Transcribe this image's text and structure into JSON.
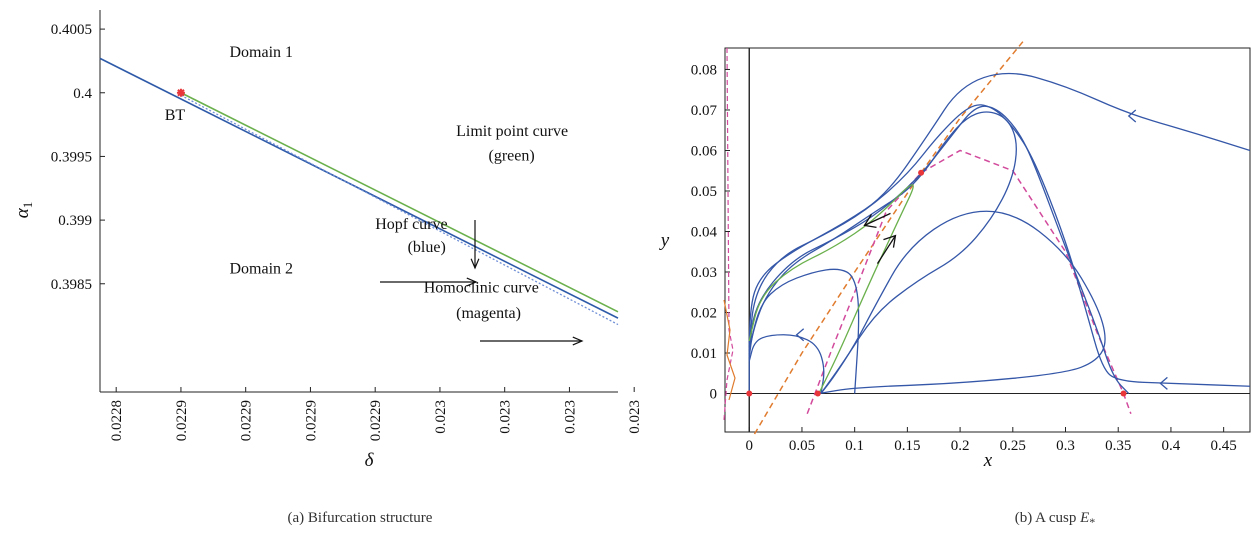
{
  "chart_data": [
    {
      "type": "line",
      "caption": "(a)  Bifurcation structure",
      "xlabel": "δ",
      "ylabel_main": "α",
      "ylabel_sub": "1",
      "xlim": [
        0.022875,
        0.023035
      ],
      "ylim": [
        0.39765,
        0.40065
      ],
      "xticks": [
        {
          "value": 0.02288,
          "label": "0.0228"
        },
        {
          "value": 0.0229,
          "label": "0.0229"
        },
        {
          "value": 0.02292,
          "label": "0.0229"
        },
        {
          "value": 0.02294,
          "label": "0.0229"
        },
        {
          "value": 0.02296,
          "label": "0.0229"
        },
        {
          "value": 0.02298,
          "label": "0.023"
        },
        {
          "value": 0.023,
          "label": "0.023"
        },
        {
          "value": 0.02302,
          "label": "0.023"
        },
        {
          "value": 0.02304,
          "label": "0.023"
        }
      ],
      "yticks": [
        {
          "value": 0.3985,
          "label": "0.3985"
        },
        {
          "value": 0.399,
          "label": "0.399"
        },
        {
          "value": 0.3995,
          "label": "0.3995"
        },
        {
          "value": 0.4,
          "label": "0.4"
        },
        {
          "value": 0.4005,
          "label": "0.4005"
        }
      ],
      "series": [
        {
          "key": "limit_point",
          "color": "#6ab04c",
          "x": [
            0.0229,
            0.023035
          ],
          "y": [
            0.4,
            0.39828
          ]
        },
        {
          "key": "hopf",
          "color": "#2e5aa8",
          "x": [
            0.022875,
            0.023035
          ],
          "y": [
            0.40027,
            0.39823
          ]
        },
        {
          "key": "homoclinic",
          "color": "#6f8fd6",
          "dashed": true,
          "x": [
            0.0229,
            0.023035
          ],
          "y": [
            0.39998,
            0.39818
          ]
        }
      ],
      "points": [
        {
          "label": "BT",
          "x": 0.0229,
          "y": 0.4,
          "color": "#e8363a"
        }
      ],
      "annotations": [
        {
          "key": "domain1",
          "text": "Domain 1",
          "x": 0.022915,
          "y": 0.40028
        },
        {
          "key": "domain2",
          "text": "Domain 2",
          "x": 0.022915,
          "y": 0.39858
        },
        {
          "key": "limit_line1",
          "text": "Limit point curve",
          "x": 0.022985,
          "y": 0.39966
        },
        {
          "key": "limit_line2",
          "text": "(green)",
          "x": 0.022995,
          "y": 0.39947
        },
        {
          "key": "hopf_line1",
          "text": "Hopf curve",
          "x": 0.02296,
          "y": 0.39893
        },
        {
          "key": "hopf_line2",
          "text": "(blue)",
          "x": 0.02297,
          "y": 0.39875
        },
        {
          "key": "homo_line1",
          "text": "Homoclinic curve",
          "x": 0.022975,
          "y": 0.39843
        },
        {
          "key": "homo_line2",
          "text": "(magenta)",
          "x": 0.022985,
          "y": 0.39823
        }
      ]
    },
    {
      "type": "line",
      "caption_main": "(b)  A cusp ",
      "caption_var": "E",
      "caption_sub": "*",
      "xlabel": "x",
      "ylabel": "y",
      "xlim": [
        -0.023,
        0.475
      ],
      "ylim": [
        -0.0095,
        0.0853
      ],
      "xticks": [
        {
          "value": 0,
          "label": "0"
        },
        {
          "value": 0.05,
          "label": "0.05"
        },
        {
          "value": 0.1,
          "label": "0.1"
        },
        {
          "value": 0.15,
          "label": "0.15"
        },
        {
          "value": 0.2,
          "label": "0.2"
        },
        {
          "value": 0.25,
          "label": "0.25"
        },
        {
          "value": 0.3,
          "label": "0.3"
        },
        {
          "value": 0.35,
          "label": "0.35"
        },
        {
          "value": 0.4,
          "label": "0.4"
        },
        {
          "value": 0.45,
          "label": "0.45"
        }
      ],
      "yticks": [
        {
          "value": 0,
          "label": "0"
        },
        {
          "value": 0.01,
          "label": "0.01"
        },
        {
          "value": 0.02,
          "label": "0.02"
        },
        {
          "value": 0.03,
          "label": "0.03"
        },
        {
          "value": 0.04,
          "label": "0.04"
        },
        {
          "value": 0.05,
          "label": "0.05"
        },
        {
          "value": 0.06,
          "label": "0.06"
        },
        {
          "value": 0.07,
          "label": "0.07"
        },
        {
          "value": 0.08,
          "label": "0.08"
        }
      ],
      "equilibria": [
        {
          "x": 0,
          "y": 0
        },
        {
          "x": 0.065,
          "y": 0
        },
        {
          "x": 0.163,
          "y": 0.0545
        },
        {
          "x": 0.355,
          "y": 0
        }
      ],
      "nullclines": [
        {
          "key": "orange-nullcline",
          "color": "#e07b2e",
          "dashed": true,
          "x": [
            0.005,
            0.05,
            0.1,
            0.163,
            0.2,
            0.26
          ],
          "y": [
            -0.01,
            0.01,
            0.03,
            0.0545,
            0.068,
            0.087
          ]
        },
        {
          "key": "magenta-nullcline",
          "color": "#d24a9c",
          "dashed": true,
          "x": [
            0.055,
            0.08,
            0.1,
            0.13,
            0.163,
            0.2,
            0.25,
            0.3,
            0.33,
            0.355,
            0.362
          ],
          "y": [
            -0.005,
            0.012,
            0.025,
            0.045,
            0.0545,
            0.06,
            0.055,
            0.035,
            0.015,
            0.0,
            -0.005
          ]
        }
      ],
      "trajectories": [
        {
          "key": "outer-orbit",
          "color": "#3557a8",
          "x": [
            0.475,
            0.42,
            0.36,
            0.3,
            0.245,
            0.2,
            0.17,
            0.13,
            0.09,
            0.04,
            0.01,
            0.0,
            0.0
          ],
          "y": [
            0.06,
            0.0645,
            0.069,
            0.076,
            0.08,
            0.076,
            0.064,
            0.049,
            0.042,
            0.035,
            0.029,
            0.021,
            0.0
          ]
        },
        {
          "key": "separatrix-upper",
          "color": "#3557a8",
          "x": [
            0.0,
            0.005,
            0.03,
            0.07,
            0.11,
            0.15,
            0.18,
            0.21,
            0.23,
            0.25,
            0.27,
            0.3,
            0.32,
            0.335,
            0.35,
            0.4,
            0.475
          ],
          "y": [
            0.012,
            0.025,
            0.034,
            0.039,
            0.045,
            0.054,
            0.064,
            0.0715,
            0.071,
            0.066,
            0.058,
            0.038,
            0.02,
            0.006,
            0.003,
            0.0025,
            0.0018
          ]
        },
        {
          "key": "separatrix-second",
          "color": "#3557a8",
          "x": [
            0.0,
            0.005,
            0.04,
            0.08,
            0.12,
            0.16,
            0.19,
            0.215,
            0.235,
            0.255,
            0.27,
            0.3,
            0.33,
            0.345,
            0.36
          ],
          "y": [
            0.01,
            0.022,
            0.033,
            0.038,
            0.044,
            0.053,
            0.063,
            0.0713,
            0.0705,
            0.065,
            0.057,
            0.036,
            0.016,
            0.004,
            0.0
          ]
        },
        {
          "key": "inner-loop",
          "color": "#3557a8",
          "x": [
            0.068,
            0.09,
            0.12,
            0.16,
            0.2,
            0.23,
            0.25,
            0.255,
            0.245,
            0.225,
            0.205,
            0.185,
            0.17,
            0.15,
            0.12,
            0.08,
            0.04,
            0.015,
            0.003,
            0.0
          ],
          "y": [
            0.0,
            0.008,
            0.02,
            0.028,
            0.034,
            0.043,
            0.053,
            0.062,
            0.068,
            0.07,
            0.068,
            0.062,
            0.056,
            0.05,
            0.045,
            0.038,
            0.032,
            0.024,
            0.015,
            0.009
          ]
        },
        {
          "key": "lower-flow",
          "color": "#3557a8",
          "x": [
            0.066,
            0.1,
            0.2,
            0.3,
            0.33,
            0.34,
            0.33,
            0.3,
            0.25,
            0.2,
            0.15,
            0.12,
            0.1,
            0.08,
            0.068
          ],
          "y": [
            0.0,
            0.0015,
            0.0025,
            0.005,
            0.008,
            0.013,
            0.022,
            0.035,
            0.045,
            0.045,
            0.036,
            0.022,
            0.012,
            0.004,
            0.0
          ]
        },
        {
          "key": "small-arc-1",
          "color": "#3557a8",
          "x": [
            0.0,
            0.01,
            0.03,
            0.06,
            0.085,
            0.1,
            0.105,
            0.1
          ],
          "y": [
            0.011,
            0.022,
            0.027,
            0.03,
            0.031,
            0.029,
            0.02,
            0.0
          ]
        },
        {
          "key": "small-arc-2",
          "color": "#3557a8",
          "x": [
            0.0,
            0.005,
            0.02,
            0.045,
            0.065,
            0.072,
            0.068
          ],
          "y": [
            0.008,
            0.013,
            0.0145,
            0.0145,
            0.012,
            0.006,
            0.0
          ]
        },
        {
          "key": "manifold-green",
          "color": "#6ab04c",
          "x": [
            0.0,
            0.01,
            0.04,
            0.08,
            0.12,
            0.163,
            0.14,
            0.11,
            0.085,
            0.066
          ],
          "y": [
            0.013,
            0.024,
            0.031,
            0.036,
            0.043,
            0.0545,
            0.042,
            0.025,
            0.01,
            0.0
          ]
        }
      ],
      "arrows": [
        {
          "color": "#3557a8",
          "x": 0.36,
          "y": 0.0685,
          "dir": "left"
        },
        {
          "color": "#3557a8",
          "x": 0.39,
          "y": 0.0025,
          "dir": "left"
        },
        {
          "color": "#3557a8",
          "x": 0.045,
          "y": 0.0145,
          "dir": "left"
        },
        {
          "color": "#111111",
          "x": 0.115,
          "y": 0.042,
          "dir": "down-left"
        },
        {
          "color": "#111111",
          "x": 0.133,
          "y": 0.0375,
          "dir": "up-right"
        }
      ]
    }
  ]
}
